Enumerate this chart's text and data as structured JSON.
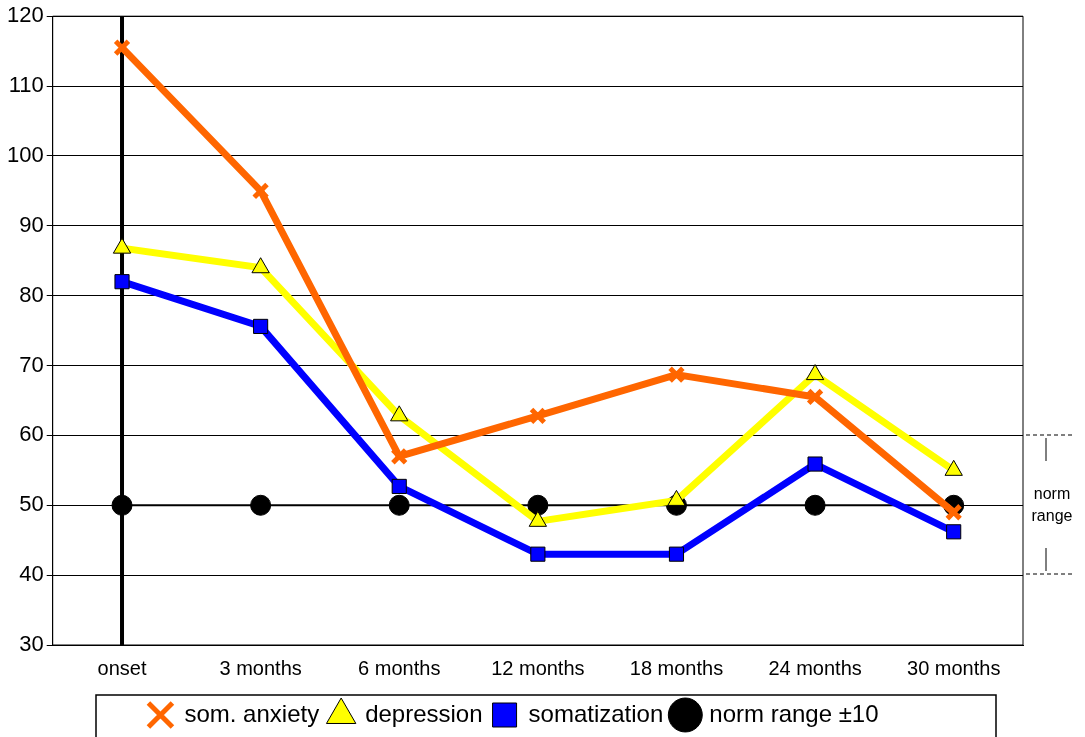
{
  "chart_data": {
    "type": "line",
    "categories": [
      "onset",
      "3 months",
      "6 months",
      "12 months",
      "18 months",
      "24 months",
      "30 months"
    ],
    "series": [
      {
        "name": "som. anxiety",
        "color": "#ff6600",
        "marker": "cross",
        "values": [
          115.5,
          95,
          57,
          62.8,
          68.7,
          65.5,
          49
        ]
      },
      {
        "name": "norm range ±10",
        "color": "#000000",
        "marker": "circle",
        "values": [
          50,
          50,
          50,
          50,
          50,
          50,
          50
        ]
      },
      {
        "name": "depression",
        "color": "#ffff00",
        "marker": "triangle",
        "values": [
          86.8,
          84,
          62.8,
          47.7,
          50.7,
          68.7,
          55
        ]
      },
      {
        "name": "somatization",
        "color": "#0000ff",
        "marker": "square",
        "values": [
          82,
          75.6,
          52.7,
          43,
          43,
          55.9,
          46.2
        ]
      }
    ],
    "ylim": [
      30,
      120
    ],
    "yticks": [
      30,
      40,
      50,
      60,
      70,
      80,
      90,
      100,
      110,
      120
    ],
    "grid": "y",
    "legend": "bottom",
    "ref_lines": [
      {
        "axis": "x",
        "value": "onset",
        "color": "#000000"
      }
    ],
    "annotations": [
      "norm range"
    ]
  }
}
